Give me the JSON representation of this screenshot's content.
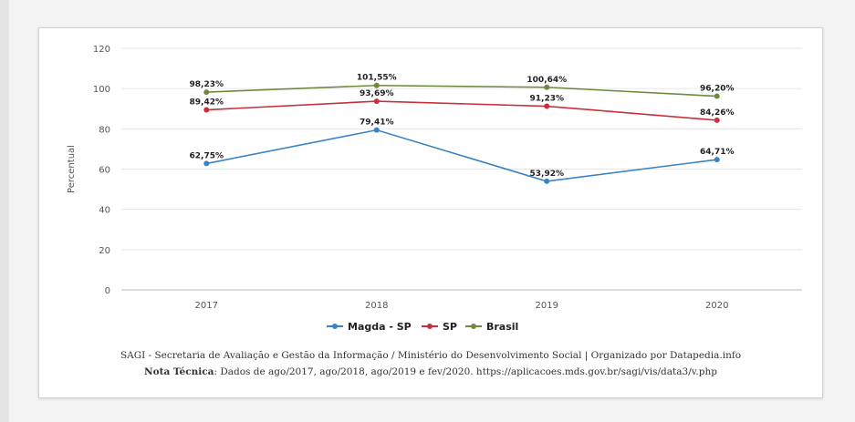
{
  "chart_data": {
    "type": "line",
    "x": [
      "2017",
      "2018",
      "2019",
      "2020"
    ],
    "ylabel": "Percentual",
    "ylim": [
      0,
      120
    ],
    "yticks": [
      0,
      20,
      40,
      60,
      80,
      100,
      120
    ],
    "grid": true,
    "legend_position": "bottom",
    "series": [
      {
        "name": "Magda - SP",
        "color": "#3a83c2",
        "values": [
          62.75,
          79.41,
          53.92,
          64.71
        ],
        "labels": [
          "62,75%",
          "79,41%",
          "53,92%",
          "64,71%"
        ]
      },
      {
        "name": "SP",
        "color": "#c8313c",
        "values": [
          89.42,
          93.69,
          91.23,
          84.26
        ],
        "labels": [
          "89,42%",
          "93,69%",
          "91,23%",
          "84,26%"
        ]
      },
      {
        "name": "Brasil",
        "color": "#6e8b3d",
        "values": [
          98.23,
          101.55,
          100.64,
          96.2
        ],
        "labels": [
          "98,23%",
          "101,55%",
          "100,64%",
          "96,20%"
        ]
      }
    ]
  },
  "source": {
    "line1": "SAGI - Secretaria de Avaliação e Gestão da Informação / Ministério do Desenvolvimento Social | Organizado por Datapedia.info",
    "note_label": "Nota Técnica",
    "note_text": ": Dados de ago/2017, ago/2018, ago/2019 e fev/2020. https://aplicacoes.mds.gov.br/sagi/vis/data3/v.php"
  }
}
